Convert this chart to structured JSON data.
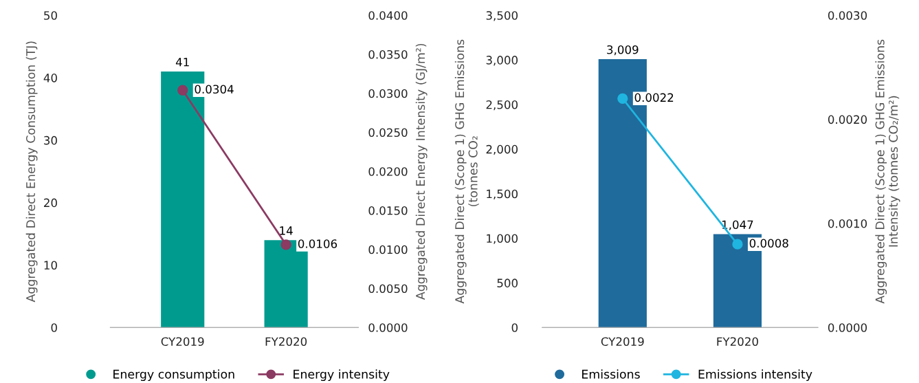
{
  "chart_data": [
    {
      "type": "bar",
      "categories": [
        "CY2019",
        "FY2020"
      ],
      "ylabel": "Aggregated Direct Energy Consumption (TJ)",
      "y2label": "Aggregated Direct Energy Intensity (GJ/m²)",
      "ylim": [
        0,
        50
      ],
      "yticks": [
        0,
        10,
        20,
        30,
        40,
        50
      ],
      "y2lim": [
        0,
        0.04
      ],
      "y2ticks": [
        {
          "value": 0,
          "label": "0.0000"
        },
        {
          "value": 0.005,
          "label": "0.0050"
        },
        {
          "value": 0.01,
          "label": "0.0100"
        },
        {
          "value": 0.015,
          "label": "0.0150"
        },
        {
          "value": 0.02,
          "label": "0.0200"
        },
        {
          "value": 0.025,
          "label": "0.0250"
        },
        {
          "value": 0.03,
          "label": "0.0300"
        },
        {
          "value": 0.035,
          "label": "0.0350"
        },
        {
          "value": 0.04,
          "label": "0.0400"
        }
      ],
      "grid": false,
      "legend": "bottom",
      "marker": "circle",
      "series": [
        {
          "name": "Energy consumption",
          "color": "#009b8f",
          "values": [
            41,
            14
          ],
          "value_labels": [
            "41",
            "14"
          ]
        },
        {
          "name": "Energy intensity",
          "type": "line",
          "axis": "y2",
          "color": "#8b3a62",
          "values": [
            0.0304,
            0.0106
          ],
          "value_labels": [
            "0.0304",
            "0.0106"
          ]
        }
      ]
    },
    {
      "type": "bar",
      "categories": [
        "CY2019",
        "FY2020"
      ],
      "ylabel": "Aggregated Direct (Scope 1) GHG Emissions\n(tonnes CO₂",
      "y2label": "Aggregated Direct (Scope 1) GHG Emissions\nIntensity (tonnes CO₂/m²)",
      "ylim": [
        0,
        3500
      ],
      "yticks": [
        0,
        500,
        {
          "value": 1000,
          "label": "1,000"
        },
        {
          "value": 1500,
          "label": "1,500"
        },
        {
          "value": 2000,
          "label": "2,000"
        },
        {
          "value": 2500,
          "label": "2,500"
        },
        {
          "value": 3000,
          "label": "3,000"
        },
        {
          "value": 3500,
          "label": "3,500"
        }
      ],
      "y2lim": [
        0,
        0.003
      ],
      "y2ticks": [
        {
          "value": 0,
          "label": "0.0000"
        },
        {
          "value": 0.001,
          "label": "0.0010"
        },
        {
          "value": 0.002,
          "label": "0.0020"
        },
        {
          "value": 0.003,
          "label": "0.0030"
        }
      ],
      "grid": false,
      "legend": "bottom",
      "marker": "circle",
      "series": [
        {
          "name": "Emissions",
          "color": "#1f6b9c",
          "values": [
            3009,
            1047
          ],
          "value_labels": [
            "3,009",
            "1,047"
          ]
        },
        {
          "name": "Emissions intensity",
          "type": "line",
          "axis": "y2",
          "color": "#1fb5e0",
          "values": [
            0.0022,
            0.0008
          ],
          "value_labels": [
            "0.0022",
            "0.0008"
          ]
        }
      ]
    }
  ]
}
